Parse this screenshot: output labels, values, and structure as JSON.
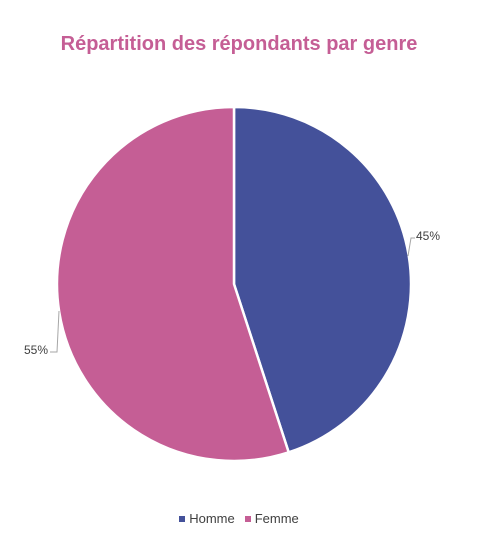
{
  "chart_data": {
    "type": "pie",
    "title": "Répartition des répondants par genre",
    "categories": [
      "Homme",
      "Femme"
    ],
    "values": [
      45,
      55
    ],
    "data_labels": [
      "45%",
      "55%"
    ],
    "colors": [
      "#44519a",
      "#c55e95"
    ],
    "legend_position": "bottom",
    "start_angle": "12 o'clock, clockwise"
  },
  "colors": {
    "title": "#c55e95",
    "label_text": "#404040",
    "leader_line": "#a6a6a6",
    "slice_border": "#ffffff"
  }
}
